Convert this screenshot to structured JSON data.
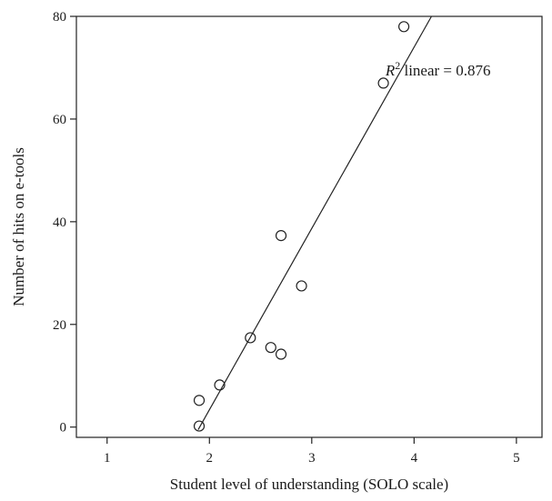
{
  "chart_data": {
    "type": "scatter",
    "title": "",
    "xlabel": "Student level of understanding (SOLO scale)",
    "ylabel": "Number of hits on e-tools",
    "xlim": [
      0.7,
      5.25
    ],
    "ylim": [
      -2,
      80
    ],
    "x_ticks": [
      1,
      2,
      3,
      4,
      5
    ],
    "y_ticks": [
      0,
      20,
      40,
      60,
      80
    ],
    "grid": false,
    "points": [
      {
        "x": 1.9,
        "y": 5.2
      },
      {
        "x": 1.9,
        "y": 0.2
      },
      {
        "x": 2.1,
        "y": 8.2
      },
      {
        "x": 2.4,
        "y": 17.4
      },
      {
        "x": 2.6,
        "y": 15.5
      },
      {
        "x": 2.7,
        "y": 14.2
      },
      {
        "x": 2.7,
        "y": 37.3
      },
      {
        "x": 2.9,
        "y": 27.5
      },
      {
        "x": 3.7,
        "y": 67.0
      },
      {
        "x": 3.9,
        "y": 78.0
      }
    ],
    "fit_line": {
      "type": "linear",
      "from": {
        "x": 1.89,
        "y": -0.5
      },
      "to": {
        "x": 4.17,
        "y": 80
      }
    },
    "annotation": {
      "r_symbol": "R",
      "superscript": "2",
      "text": " linear = 0.876",
      "anchor": {
        "x": 3.72,
        "y": 68.5
      }
    }
  }
}
